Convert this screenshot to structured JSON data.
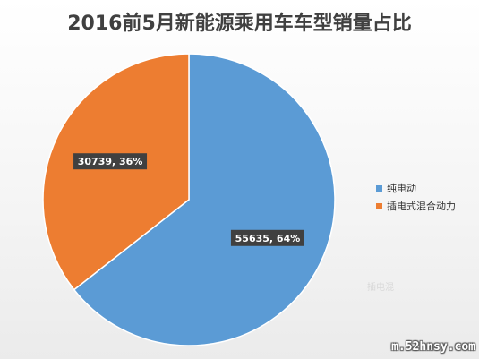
{
  "chart_data": {
    "type": "pie",
    "title": "2016前5月新能源乘用车车型销量占比",
    "slices": [
      {
        "name": "纯电动",
        "value": 55635,
        "percent": 64,
        "label": "55635, 64%",
        "color": "#5b9bd5"
      },
      {
        "name": "插电式混合动力",
        "value": 30739,
        "percent": 36,
        "label": "30739, 36%",
        "color": "#ed7d31"
      }
    ],
    "legend_position": "right"
  },
  "legend": {
    "items": [
      {
        "label": "纯电动",
        "color": "#5b9bd5"
      },
      {
        "label": "插电式混合动力",
        "color": "#ed7d31"
      }
    ]
  },
  "watermark": {
    "mid_text": "插电混",
    "url": "m.52hnsy.com"
  }
}
